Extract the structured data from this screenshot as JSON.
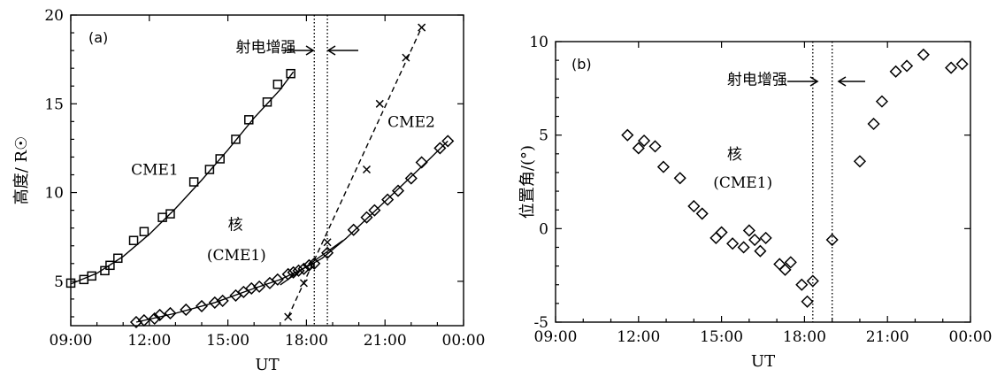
{
  "chart_data": [
    {
      "panel": "(a)",
      "type": "scatter",
      "xlabel": "UT",
      "ylabel": "高度/ R☉",
      "xlim": [
        9,
        24
      ],
      "ylim": [
        2.5,
        20
      ],
      "xticks": [
        9,
        12,
        15,
        18,
        21,
        24
      ],
      "xtick_labels": [
        "09:00",
        "12:00",
        "15:00",
        "18:00",
        "21:00",
        "00:00"
      ],
      "yticks": [
        5,
        10,
        15,
        20
      ],
      "ytick_labels": [
        "5",
        "10",
        "15",
        "20"
      ],
      "vlines": [
        18.3,
        18.8
      ],
      "annotations": [
        {
          "text": "射电增强",
          "x": 15.3,
          "y": 17.9
        },
        {
          "text": "CME1",
          "x": 11.3,
          "y": 11.0
        },
        {
          "text": "CME2",
          "x": 21.1,
          "y": 13.7
        },
        {
          "text": "核",
          "x": 15.0,
          "y": 7.9
        },
        {
          "text": "(CME1)",
          "x": 14.2,
          "y": 6.2
        }
      ],
      "series": [
        {
          "name": "CME1",
          "marker": "square",
          "points": [
            [
              9.0,
              4.9
            ],
            [
              9.5,
              5.1
            ],
            [
              9.8,
              5.3
            ],
            [
              10.3,
              5.6
            ],
            [
              10.5,
              5.9
            ],
            [
              10.8,
              6.3
            ],
            [
              11.4,
              7.3
            ],
            [
              11.8,
              7.8
            ],
            [
              12.5,
              8.6
            ],
            [
              12.8,
              8.8
            ],
            [
              13.7,
              10.6
            ],
            [
              14.3,
              11.3
            ],
            [
              14.7,
              11.9
            ],
            [
              15.3,
              13.0
            ],
            [
              15.8,
              14.1
            ],
            [
              16.5,
              15.1
            ],
            [
              16.9,
              16.1
            ],
            [
              17.4,
              16.7
            ]
          ],
          "fit": [
            [
              9.0,
              4.85
            ],
            [
              10.0,
              5.45
            ],
            [
              11.0,
              6.4
            ],
            [
              12.0,
              7.65
            ],
            [
              13.0,
              9.1
            ],
            [
              14.0,
              10.7
            ],
            [
              15.0,
              12.4
            ],
            [
              16.0,
              14.2
            ],
            [
              17.0,
              15.8
            ],
            [
              17.5,
              16.8
            ]
          ]
        },
        {
          "name": "CME2",
          "marker": "x",
          "points": [
            [
              17.3,
              3.0
            ],
            [
              17.9,
              4.9
            ],
            [
              18.8,
              7.2
            ],
            [
              20.3,
              11.3
            ],
            [
              20.8,
              15.0
            ],
            [
              21.8,
              17.6
            ],
            [
              22.4,
              19.3
            ]
          ],
          "fit": [
            [
              17.3,
              3.0
            ],
            [
              22.4,
              19.3
            ]
          ]
        },
        {
          "name": "核 (CME1)",
          "marker": "diamond",
          "points": [
            [
              11.5,
              2.7
            ],
            [
              11.8,
              2.8
            ],
            [
              12.2,
              2.9
            ],
            [
              12.4,
              3.1
            ],
            [
              12.8,
              3.2
            ],
            [
              13.4,
              3.4
            ],
            [
              14.0,
              3.6
            ],
            [
              14.5,
              3.8
            ],
            [
              14.8,
              3.9
            ],
            [
              15.3,
              4.2
            ],
            [
              15.6,
              4.4
            ],
            [
              15.9,
              4.6
            ],
            [
              16.2,
              4.7
            ],
            [
              16.6,
              4.9
            ],
            [
              16.9,
              5.1
            ],
            [
              17.3,
              5.4
            ],
            [
              17.5,
              5.5
            ],
            [
              17.7,
              5.6
            ],
            [
              17.9,
              5.7
            ],
            [
              18.1,
              5.9
            ],
            [
              18.3,
              6.0
            ],
            [
              18.8,
              6.6
            ],
            [
              19.8,
              7.9
            ],
            [
              20.3,
              8.6
            ],
            [
              20.6,
              9.0
            ],
            [
              21.1,
              9.6
            ],
            [
              21.5,
              10.1
            ],
            [
              22.0,
              10.8
            ],
            [
              22.4,
              11.7
            ],
            [
              23.1,
              12.5
            ],
            [
              23.4,
              12.9
            ]
          ],
          "fit": [
            [
              11.5,
              2.7
            ],
            [
              13.0,
              3.2
            ],
            [
              14.5,
              3.8
            ],
            [
              16.0,
              4.6
            ],
            [
              17.0,
              5.1
            ],
            [
              18.0,
              5.8
            ],
            [
              18.6,
              6.3
            ],
            [
              19.5,
              7.4
            ],
            [
              20.5,
              8.8
            ],
            [
              21.5,
              10.2
            ],
            [
              22.5,
              11.6
            ],
            [
              23.4,
              12.9
            ]
          ],
          "fit2": [
            [
              17.0,
              4.8
            ],
            [
              19.4,
              7.3
            ]
          ]
        }
      ]
    },
    {
      "panel": "(b)",
      "type": "scatter",
      "xlabel": "UT",
      "ylabel": "位置角/(°)",
      "xlim": [
        9,
        24
      ],
      "ylim": [
        -5,
        10
      ],
      "xticks": [
        9,
        12,
        15,
        18,
        21,
        24
      ],
      "xtick_labels": [
        "09:00",
        "12:00",
        "15:00",
        "18:00",
        "21:00",
        "00:00"
      ],
      "yticks": [
        -5,
        0,
        5,
        10
      ],
      "ytick_labels": [
        "-5",
        "0",
        "5",
        "10"
      ],
      "vlines": [
        18.3,
        19.0
      ],
      "annotations": [
        {
          "text": "射电增强",
          "x": 15.2,
          "y": 7.7
        },
        {
          "text": "核",
          "x": 15.2,
          "y": 3.7
        },
        {
          "text": "(CME1)",
          "x": 14.7,
          "y": 2.2
        }
      ],
      "series": [
        {
          "name": "核 (CME1)",
          "marker": "diamond",
          "points": [
            [
              11.6,
              5.0
            ],
            [
              12.0,
              4.3
            ],
            [
              12.2,
              4.7
            ],
            [
              12.6,
              4.4
            ],
            [
              12.9,
              3.3
            ],
            [
              13.5,
              2.7
            ],
            [
              14.0,
              1.2
            ],
            [
              14.3,
              0.8
            ],
            [
              14.8,
              -0.5
            ],
            [
              15.0,
              -0.2
            ],
            [
              15.4,
              -0.8
            ],
            [
              15.8,
              -1.0
            ],
            [
              16.0,
              -0.1
            ],
            [
              16.2,
              -0.6
            ],
            [
              16.4,
              -1.2
            ],
            [
              16.6,
              -0.5
            ],
            [
              17.1,
              -1.9
            ],
            [
              17.3,
              -2.2
            ],
            [
              17.5,
              -1.8
            ],
            [
              17.9,
              -3.0
            ],
            [
              18.1,
              -3.9
            ],
            [
              18.3,
              -2.8
            ],
            [
              19.0,
              -0.6
            ],
            [
              20.0,
              3.6
            ],
            [
              20.5,
              5.6
            ],
            [
              20.8,
              6.8
            ],
            [
              21.3,
              8.4
            ],
            [
              21.7,
              8.7
            ],
            [
              22.3,
              9.3
            ],
            [
              23.3,
              8.6
            ],
            [
              23.7,
              8.8
            ]
          ]
        }
      ]
    }
  ]
}
